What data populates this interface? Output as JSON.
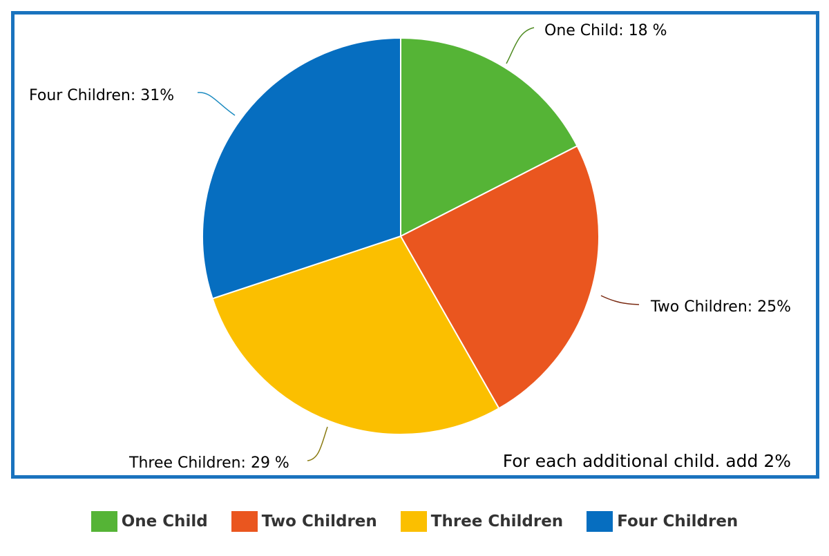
{
  "chart_data": {
    "type": "pie",
    "title": "",
    "categories": [
      "One Child",
      "Two Children",
      "Three Children",
      "Four Children"
    ],
    "values": [
      18,
      25,
      29,
      31
    ],
    "units": "%",
    "slice_labels": [
      "One Child: 18 %",
      "Two Children: 25%",
      "Three Children: 29 %",
      "Four Children: 31%"
    ],
    "colors": [
      "#55b436",
      "#ea561f",
      "#fbbf00",
      "#066ec0"
    ],
    "leader_colors": [
      "#4d8a1f",
      "#7a2a12",
      "#8a7a10",
      "#1a8ac0"
    ],
    "annotation": "For each additional child. add 2%",
    "legend_position": "bottom-center"
  },
  "legend": {
    "items": [
      {
        "label": "One Child",
        "color": "#55b436"
      },
      {
        "label": "Two Children",
        "color": "#ea561f"
      },
      {
        "label": "Three Children",
        "color": "#fbbf00"
      },
      {
        "label": "Four Children",
        "color": "#066ec0"
      }
    ]
  },
  "frame_color": "#1a73be"
}
